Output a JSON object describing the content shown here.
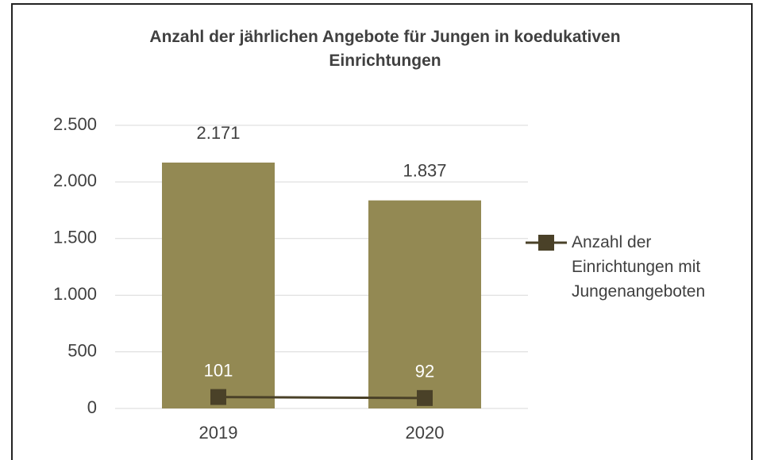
{
  "chart_data": {
    "type": "bar",
    "title": "Anzahl der jährlichen Angebote für Jungen in koedukativen Einrichtungen",
    "categories": [
      "2019",
      "2020"
    ],
    "series": [
      {
        "type": "bar",
        "color": "#938953",
        "values": [
          2171,
          1837
        ],
        "value_labels": [
          "2.171",
          "1.837"
        ]
      },
      {
        "type": "line",
        "name": "Anzahl der Einrichtungen mit Jungenangeboten",
        "color": "#4a4128",
        "values": [
          101,
          92
        ]
      }
    ],
    "ylim": [
      0,
      2500
    ],
    "yticks": [
      0,
      500,
      {
        "value": 1000,
        "label": "1.000"
      },
      {
        "value": 1500,
        "label": "1.500"
      },
      {
        "value": 2000,
        "label": "2.000"
      },
      {
        "value": 2500,
        "label": "2.500"
      }
    ],
    "grid": true,
    "legend": "right"
  }
}
